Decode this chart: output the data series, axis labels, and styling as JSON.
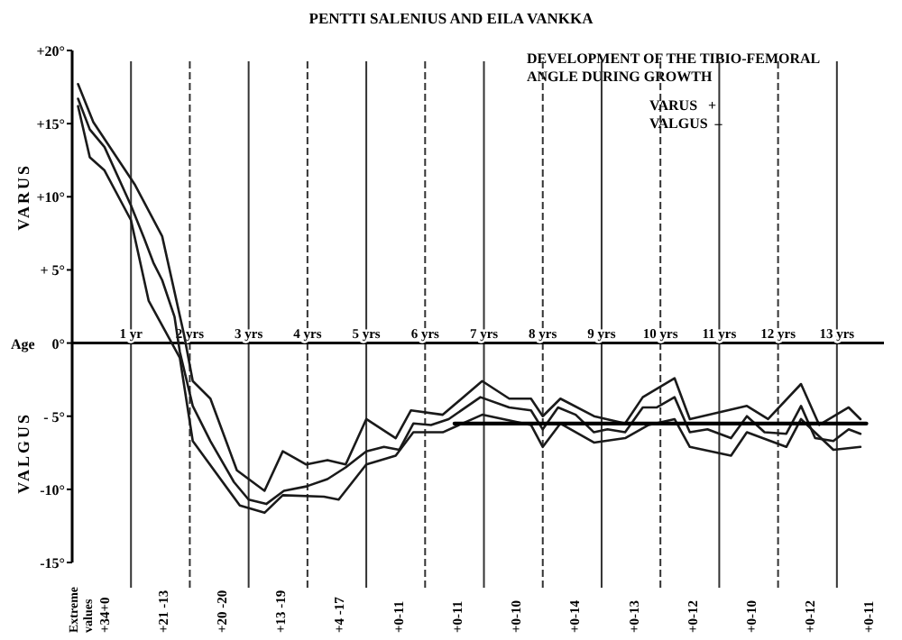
{
  "chart_data": {
    "type": "line",
    "title": "PENTTI SALENIUS AND EILA VANKKA",
    "subtitle": "DEVELOPMENT OF THE TIBIO-FEMORAL ANGLE DURING GROWTH",
    "xlabel": "Age",
    "ylabel": "VARUS",
    "xlim": [
      0,
      13.8
    ],
    "ylim": [
      -15,
      20
    ],
    "xticks": [
      {
        "value": 1,
        "label": "1 yr"
      },
      {
        "value": 2,
        "label": "2 yrs"
      },
      {
        "value": 3,
        "label": "3 yrs"
      },
      {
        "value": 4,
        "label": "4 yrs"
      },
      {
        "value": 5,
        "label": "5 yrs"
      },
      {
        "value": 6,
        "label": "6 yrs"
      },
      {
        "value": 7,
        "label": "7 yrs"
      },
      {
        "value": 8,
        "label": "8 yrs"
      },
      {
        "value": 9,
        "label": "9 yrs"
      },
      {
        "value": 10,
        "label": "10 yrs"
      },
      {
        "value": 11,
        "label": "11 yrs"
      },
      {
        "value": 12,
        "label": "12 yrs"
      },
      {
        "value": 13,
        "label": "13 yrs"
      }
    ],
    "yticks": [
      {
        "value": 20,
        "label": "+20°"
      },
      {
        "value": 15,
        "label": "+15°"
      },
      {
        "value": 10,
        "label": "+10°"
      },
      {
        "value": 5,
        "label": "+ 5°"
      },
      {
        "value": 0,
        "label": "0°"
      },
      {
        "value": -5,
        "label": "- 5°"
      },
      {
        "value": -10,
        "label": "-10°"
      },
      {
        "value": -15,
        "label": "-15°"
      }
    ],
    "grid": "x",
    "line_style": "solid",
    "series": [
      {
        "color": "#1a1a1a",
        "x": [
          0.1,
          0.36,
          1.07,
          1.53,
          1.9,
          2.05,
          2.35,
          2.8,
          3.27,
          3.58,
          3.98,
          4.34,
          4.65,
          5.0,
          5.5,
          5.76,
          6.3,
          6.97,
          7.43,
          7.8,
          8.0,
          8.3,
          8.87,
          9.4,
          9.7,
          10.24,
          10.5,
          11.47,
          11.83,
          12.39,
          12.7,
          13.2,
          13.4
        ],
        "values": [
          17.7,
          15.1,
          10.8,
          7.3,
          0.6,
          -2.6,
          -3.8,
          -8.7,
          -10.1,
          -7.4,
          -8.3,
          -8.0,
          -8.3,
          -5.2,
          -6.5,
          -4.6,
          -4.9,
          -2.6,
          -3.8,
          -3.8,
          -5.0,
          -3.8,
          -5.0,
          -5.5,
          -3.7,
          -2.4,
          -5.2,
          -4.3,
          -5.2,
          -2.8,
          -5.6,
          -4.4,
          -5.2
        ]
      },
      {
        "color": "#1a1a1a",
        "x": [
          0.1,
          0.3,
          0.55,
          1.0,
          1.22,
          1.38,
          1.53,
          1.74,
          1.83,
          2.05,
          2.35,
          2.75,
          3.0,
          3.3,
          3.6,
          3.98,
          4.34,
          4.65,
          5.0,
          5.3,
          5.56,
          5.8,
          6.1,
          6.4,
          6.94,
          7.43,
          7.8,
          8.0,
          8.26,
          8.56,
          8.87,
          9.1,
          9.4,
          9.7,
          9.94,
          10.24,
          10.5,
          10.8,
          11.2,
          11.47,
          11.77,
          12.14,
          12.39,
          12.63,
          12.94,
          13.2,
          13.4
        ],
        "values": [
          16.7,
          14.6,
          13.4,
          9.4,
          7.2,
          5.5,
          4.3,
          1.8,
          -0.6,
          -4.3,
          -6.7,
          -9.5,
          -10.7,
          -11.0,
          -10.1,
          -9.8,
          -9.3,
          -8.5,
          -7.4,
          -7.1,
          -7.3,
          -5.5,
          -5.6,
          -5.2,
          -3.7,
          -4.4,
          -4.6,
          -5.9,
          -4.4,
          -4.9,
          -6.1,
          -5.9,
          -6.1,
          -4.4,
          -4.4,
          -3.7,
          -6.1,
          -5.9,
          -6.5,
          -5.0,
          -6.1,
          -6.2,
          -4.3,
          -6.5,
          -6.7,
          -5.9,
          -6.2
        ]
      },
      {
        "color": "#1a1a1a",
        "x": [
          0.1,
          0.3,
          0.55,
          1.0,
          1.3,
          1.83,
          2.05,
          2.85,
          3.27,
          3.58,
          4.28,
          4.53,
          5.0,
          5.5,
          5.8,
          6.3,
          6.97,
          7.8,
          8.0,
          8.3,
          8.87,
          9.4,
          9.8,
          10.24,
          10.5,
          11.2,
          11.47,
          12.14,
          12.39,
          12.94,
          13.4
        ],
        "values": [
          16.2,
          12.7,
          11.8,
          8.4,
          2.9,
          -1.0,
          -6.7,
          -11.1,
          -11.6,
          -10.4,
          -10.5,
          -10.7,
          -8.3,
          -7.7,
          -6.1,
          -6.1,
          -4.9,
          -5.6,
          -7.1,
          -5.5,
          -6.8,
          -6.5,
          -5.6,
          -5.2,
          -7.1,
          -7.7,
          -6.1,
          -7.1,
          -5.2,
          -7.3,
          -7.1
        ]
      },
      {
        "color": "#000000",
        "x": [
          6.5,
          13.5
        ],
        "values": [
          -5.5,
          -5.5
        ]
      }
    ],
    "annotations": [
      "VALGUS",
      "VARUS   +",
      "VALGUS  –",
      "Extreme values",
      "+34+0",
      "+21 -13",
      "+20 -20",
      "+13 -19",
      "+4 -17",
      "+0-11",
      "+0-11",
      "+0-10",
      "+0-14",
      "+0-13",
      "+0-12",
      "+0-10",
      "+0-12",
      "+0-11"
    ]
  }
}
